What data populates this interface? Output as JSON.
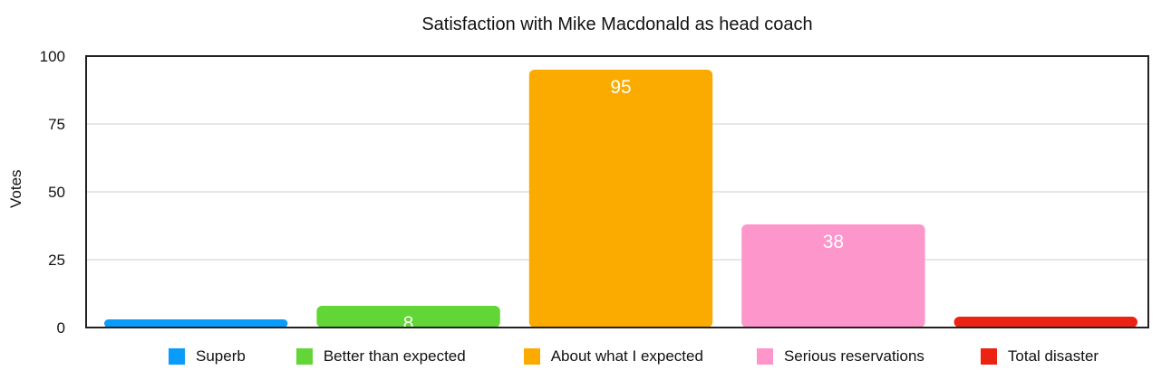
{
  "chart_data": {
    "type": "bar",
    "title": "Satisfaction with Mike Macdonald as head coach",
    "ylabel": "Votes",
    "xlabel": "",
    "ylim": [
      0,
      100
    ],
    "yticks": [
      "0",
      "25",
      "50",
      "75",
      "100"
    ],
    "grid": true,
    "legend_position": "bottom",
    "categories": [
      "Superb",
      "Better than expected",
      "About what I expected",
      "Serious reservations",
      "Total disaster"
    ],
    "values": [
      3,
      8,
      95,
      38,
      4
    ],
    "colors": [
      "#0a9cfb",
      "#62d636",
      "#fbab00",
      "#fd96cb",
      "#ec2313"
    ]
  }
}
